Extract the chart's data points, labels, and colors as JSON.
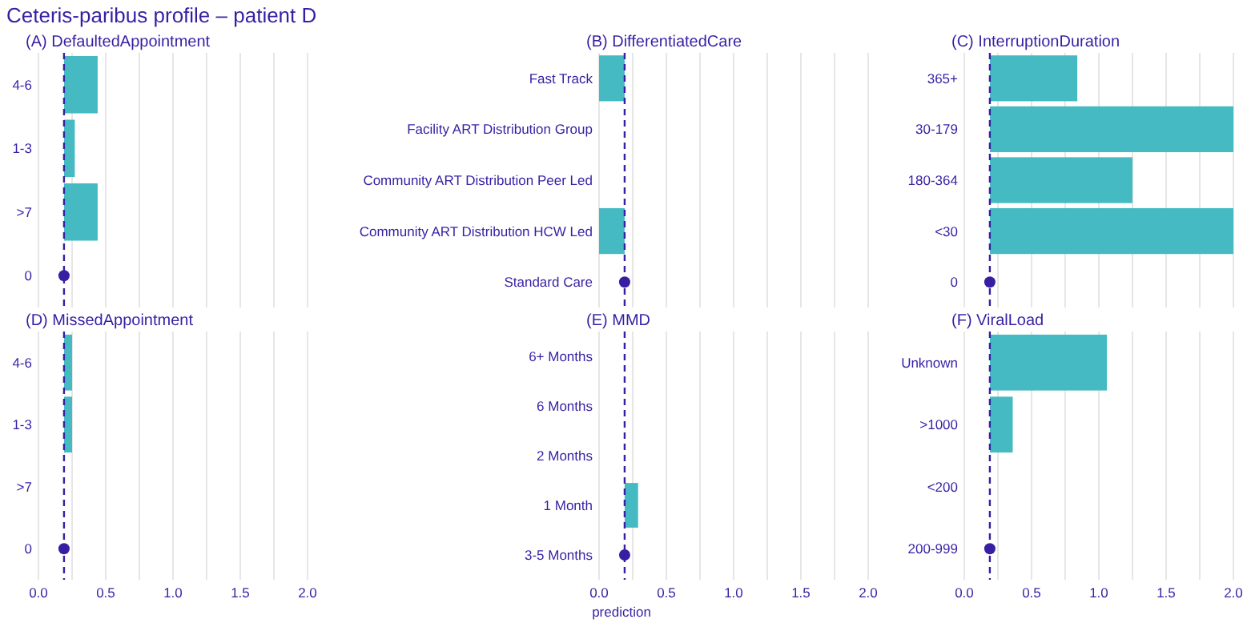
{
  "chart_data": [
    {
      "type": "bar",
      "orientation": "horizontal",
      "title": "Ceteris-paribus profile – patient D",
      "subtitle": "(A) DefaultedAppointment",
      "categories": [
        "4-6",
        "1-3",
        ">7",
        "0"
      ],
      "series": [
        {
          "color": "#46bac2",
          "values": [
            0.25,
            0.08,
            0.25,
            null
          ],
          "base": [
            0.19,
            0.19,
            0.19,
            null
          ]
        },
        {
          "type": "scatter",
          "color": "#371ea3",
          "marker": "circle",
          "x": [
            "0"
          ],
          "values": [
            0.19
          ]
        }
      ],
      "xlim": [
        0,
        2
      ],
      "xticks": [
        {
          "value": 0,
          "label": null
        },
        {
          "value": 0.25,
          "label": null
        },
        {
          "value": 0.5,
          "label": null
        },
        {
          "value": 0.75,
          "label": null
        },
        {
          "value": 1,
          "label": null
        },
        {
          "value": 1.25,
          "label": null
        },
        {
          "value": 1.5,
          "label": null
        },
        {
          "value": 1.75,
          "label": null
        },
        {
          "value": 2,
          "label": null
        }
      ],
      "grid": "x",
      "tick_labels": "y",
      "ref_lines": [
        {
          "axis": "x",
          "value": 0.19,
          "color": "#371ea3",
          "line_style": "dashed"
        }
      ]
    },
    {
      "type": "bar",
      "orientation": "horizontal",
      "subtitle": "(B) DifferentiatedCare",
      "categories": [
        "Fast Track",
        "Facility ART Distribution Group",
        "Community ART Distribution Peer Led",
        "Community ART Distribution HCW Led",
        "Standard Care"
      ],
      "series": [
        {
          "color": "#46bac2",
          "values": [
            -0.19,
            null,
            null,
            -0.19,
            null
          ],
          "base": [
            0.19,
            null,
            null,
            0.19,
            null
          ]
        },
        {
          "type": "scatter",
          "color": "#371ea3",
          "marker": "circle",
          "x": [
            "Standard Care"
          ],
          "values": [
            0.19
          ]
        }
      ],
      "xlim": [
        0,
        2
      ],
      "xticks": [
        {
          "value": 0,
          "label": null
        },
        {
          "value": 0.25,
          "label": null
        },
        {
          "value": 0.5,
          "label": null
        },
        {
          "value": 0.75,
          "label": null
        },
        {
          "value": 1,
          "label": null
        },
        {
          "value": 1.25,
          "label": null
        },
        {
          "value": 1.5,
          "label": null
        },
        {
          "value": 1.75,
          "label": null
        },
        {
          "value": 2,
          "label": null
        }
      ],
      "grid": "x",
      "tick_labels": "y",
      "ref_lines": [
        {
          "axis": "x",
          "value": 0.19,
          "color": "#371ea3",
          "line_style": "dashed"
        }
      ]
    },
    {
      "type": "bar",
      "orientation": "horizontal",
      "subtitle": "(C) InterruptionDuration",
      "categories": [
        "365+",
        "30-179",
        "180-364",
        "<30",
        "0"
      ],
      "series": [
        {
          "color": "#46bac2",
          "values": [
            0.65,
            1.81,
            1.06,
            1.81,
            null
          ],
          "base": [
            0.19,
            0.19,
            0.19,
            0.19,
            null
          ]
        },
        {
          "type": "scatter",
          "color": "#371ea3",
          "marker": "circle",
          "x": [
            "0"
          ],
          "values": [
            0.19
          ]
        }
      ],
      "xlim": [
        0,
        2
      ],
      "xticks": [
        {
          "value": 0,
          "label": null
        },
        {
          "value": 0.25,
          "label": null
        },
        {
          "value": 0.5,
          "label": null
        },
        {
          "value": 0.75,
          "label": null
        },
        {
          "value": 1,
          "label": null
        },
        {
          "value": 1.25,
          "label": null
        },
        {
          "value": 1.5,
          "label": null
        },
        {
          "value": 1.75,
          "label": null
        },
        {
          "value": 2,
          "label": null
        }
      ],
      "grid": "x",
      "tick_labels": "y",
      "ref_lines": [
        {
          "axis": "x",
          "value": 0.19,
          "color": "#371ea3",
          "line_style": "dashed"
        }
      ]
    },
    {
      "type": "bar",
      "orientation": "horizontal",
      "subtitle": "(D) MissedAppointment",
      "categories": [
        "4-6",
        "1-3",
        ">7",
        "0"
      ],
      "series": [
        {
          "color": "#46bac2",
          "values": [
            0.06,
            0.06,
            null,
            null
          ],
          "base": [
            0.19,
            0.19,
            null,
            null
          ]
        },
        {
          "type": "scatter",
          "color": "#371ea3",
          "marker": "circle",
          "x": [
            "0"
          ],
          "values": [
            0.19
          ]
        }
      ],
      "xlim": [
        0,
        2
      ],
      "xticks": [
        {
          "value": 0,
          "label": "0.0"
        },
        {
          "value": 0.25,
          "label": null
        },
        {
          "value": 0.5,
          "label": "0.5"
        },
        {
          "value": 0.75,
          "label": null
        },
        {
          "value": 1,
          "label": "1.0"
        },
        {
          "value": 1.25,
          "label": null
        },
        {
          "value": 1.5,
          "label": "1.5"
        },
        {
          "value": 1.75,
          "label": null
        },
        {
          "value": 2,
          "label": "2.0"
        }
      ],
      "grid": "x",
      "ref_lines": [
        {
          "axis": "x",
          "value": 0.19,
          "color": "#371ea3",
          "line_style": "dashed"
        }
      ]
    },
    {
      "type": "bar",
      "orientation": "horizontal",
      "subtitle": "(E) MMD",
      "xlabel": "prediction",
      "categories": [
        "6+ Months",
        "6 Months",
        "2 Months",
        "1 Month",
        "3-5 Months"
      ],
      "series": [
        {
          "color": "#46bac2",
          "values": [
            null,
            null,
            null,
            0.1,
            null
          ],
          "base": [
            null,
            null,
            null,
            0.19,
            null
          ]
        },
        {
          "type": "scatter",
          "color": "#371ea3",
          "marker": "circle",
          "x": [
            "3-5 Months"
          ],
          "values": [
            0.19
          ]
        }
      ],
      "xlim": [
        0,
        2
      ],
      "xticks": [
        {
          "value": 0,
          "label": "0.0"
        },
        {
          "value": 0.25,
          "label": null
        },
        {
          "value": 0.5,
          "label": "0.5"
        },
        {
          "value": 0.75,
          "label": null
        },
        {
          "value": 1,
          "label": "1.0"
        },
        {
          "value": 1.25,
          "label": null
        },
        {
          "value": 1.5,
          "label": "1.5"
        },
        {
          "value": 1.75,
          "label": null
        },
        {
          "value": 2,
          "label": "2.0"
        }
      ],
      "grid": "x",
      "ref_lines": [
        {
          "axis": "x",
          "value": 0.19,
          "color": "#371ea3",
          "line_style": "dashed"
        }
      ]
    },
    {
      "type": "bar",
      "orientation": "horizontal",
      "subtitle": "(F) ViralLoad",
      "categories": [
        "Unknown",
        ">1000",
        "<200",
        "200-999"
      ],
      "series": [
        {
          "color": "#46bac2",
          "values": [
            0.87,
            0.17,
            null,
            null
          ],
          "base": [
            0.19,
            0.19,
            null,
            null
          ]
        },
        {
          "type": "scatter",
          "color": "#371ea3",
          "marker": "circle",
          "x": [
            "200-999"
          ],
          "values": [
            0.19
          ]
        }
      ],
      "xlim": [
        0,
        2
      ],
      "xticks": [
        {
          "value": 0,
          "label": "0.0"
        },
        {
          "value": 0.25,
          "label": null
        },
        {
          "value": 0.5,
          "label": "0.5"
        },
        {
          "value": 0.75,
          "label": null
        },
        {
          "value": 1,
          "label": "1.0"
        },
        {
          "value": 1.25,
          "label": null
        },
        {
          "value": 1.5,
          "label": "1.5"
        },
        {
          "value": 1.75,
          "label": null
        },
        {
          "value": 2,
          "label": "2.0"
        }
      ],
      "grid": "x",
      "ref_lines": [
        {
          "axis": "x",
          "value": 0.19,
          "color": "#371ea3",
          "line_style": "dashed"
        }
      ]
    }
  ]
}
